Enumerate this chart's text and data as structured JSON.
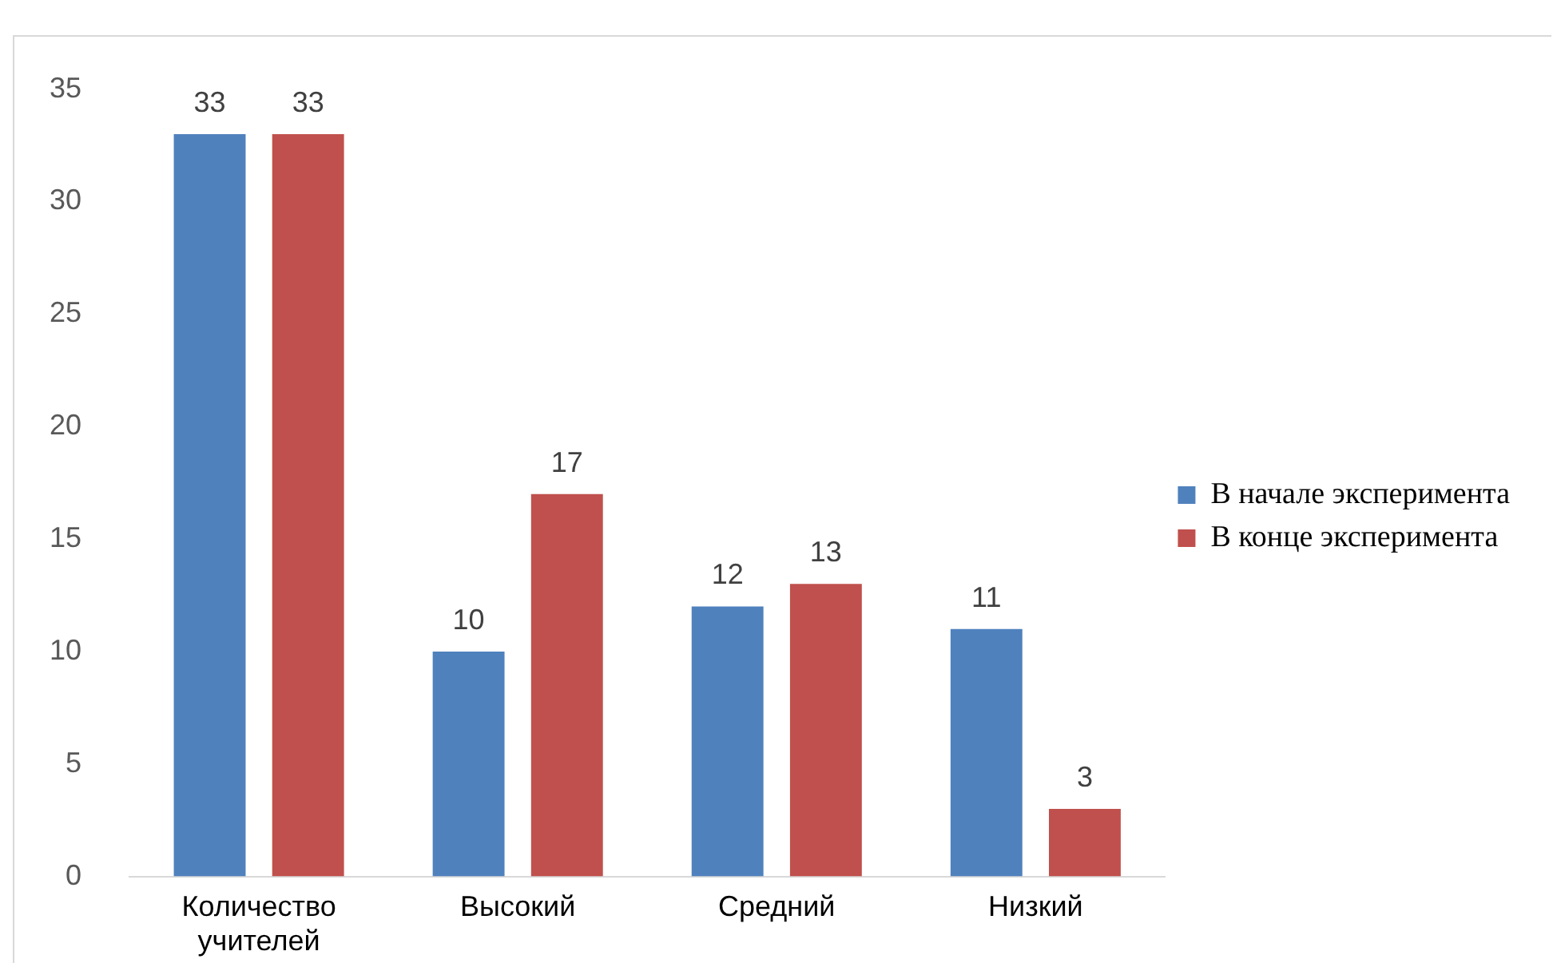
{
  "chart_data": {
    "type": "bar",
    "categories": [
      "Количество учителей",
      "Высокий",
      "Средний",
      "Низкий"
    ],
    "series": [
      {
        "name": "В начале эксперимента",
        "color": "#4f81bd",
        "values": [
          33,
          10,
          12,
          11
        ]
      },
      {
        "name": "В конце эксперимента",
        "color": "#c0504d",
        "values": [
          33,
          17,
          13,
          3
        ]
      }
    ],
    "ylim": [
      0,
      35
    ],
    "yticks": [
      0,
      5,
      10,
      15,
      20,
      25,
      30,
      35
    ],
    "grid": false,
    "legend": "right",
    "data_labels": true
  }
}
